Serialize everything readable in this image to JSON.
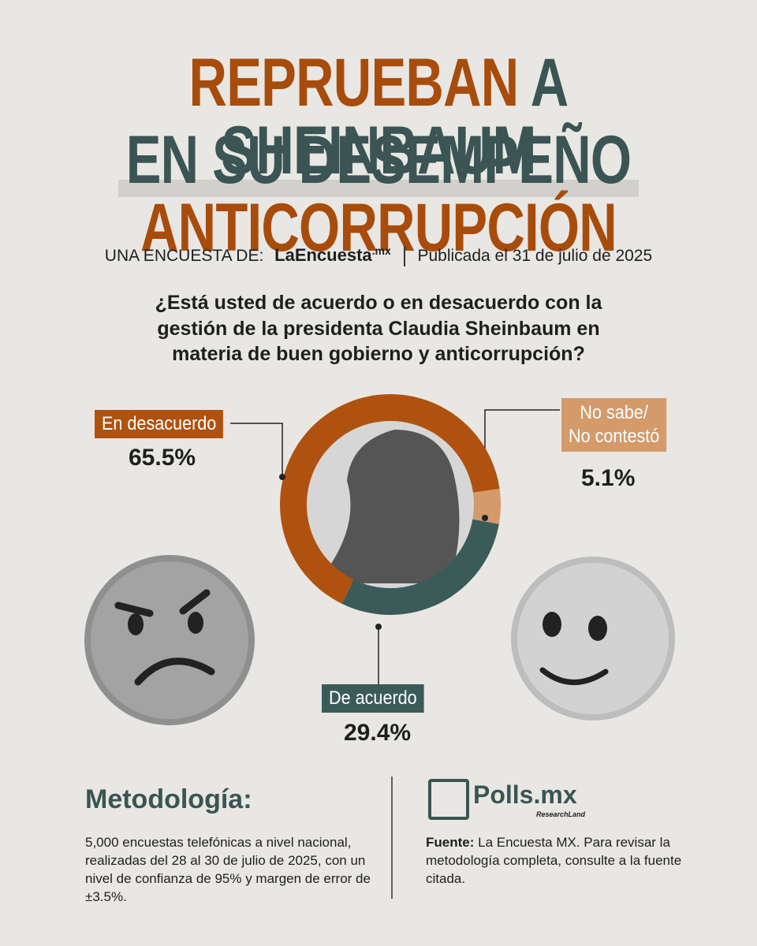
{
  "header": {
    "title_line1": [
      "REPRUEBAN",
      "A SHEINBAUM"
    ],
    "title_line2": [
      "EN SU DESEMPEÑO",
      "ANTICORRUPCIÓN"
    ],
    "byline": "UNA ENCUESTA DE:",
    "logo": "LaEncuesta",
    "logo_suffix": ".mx",
    "published": "Publicada el 31 de julio de 2025"
  },
  "chart_data": {
    "type": "pie",
    "donut": true,
    "title": "¿Está usted de acuerdo o en desacuerdo con la gestión de la presidenta Claudia Sheinbaum en materia de buen gobierno y anticorrupción?",
    "categories": [
      "En desacuerdo",
      "No sabe/\nNo contestó",
      "De acuerdo"
    ],
    "values": [
      65.5,
      5.1,
      29.4
    ],
    "value_labels": [
      "65.5%",
      "5.1%",
      "29.4%"
    ],
    "colors": [
      "#b0520f",
      "#d49a6a",
      "#3b5b59"
    ]
  },
  "methodology": {
    "title": "Metodología:",
    "text": "5,000 encuestas telefónicas a nivel nacional, realizadas del 28 al 30 de julio de 2025, con un nivel de confianza de 95% y margen de error de ±3.5%."
  },
  "source": {
    "logo": "Polls.mx",
    "logo_sub": "ResearchLand",
    "label": "Fuente:",
    "text": "La Encuesta MX. Para revisar la metodología completa, consulte a la fuente citada."
  }
}
